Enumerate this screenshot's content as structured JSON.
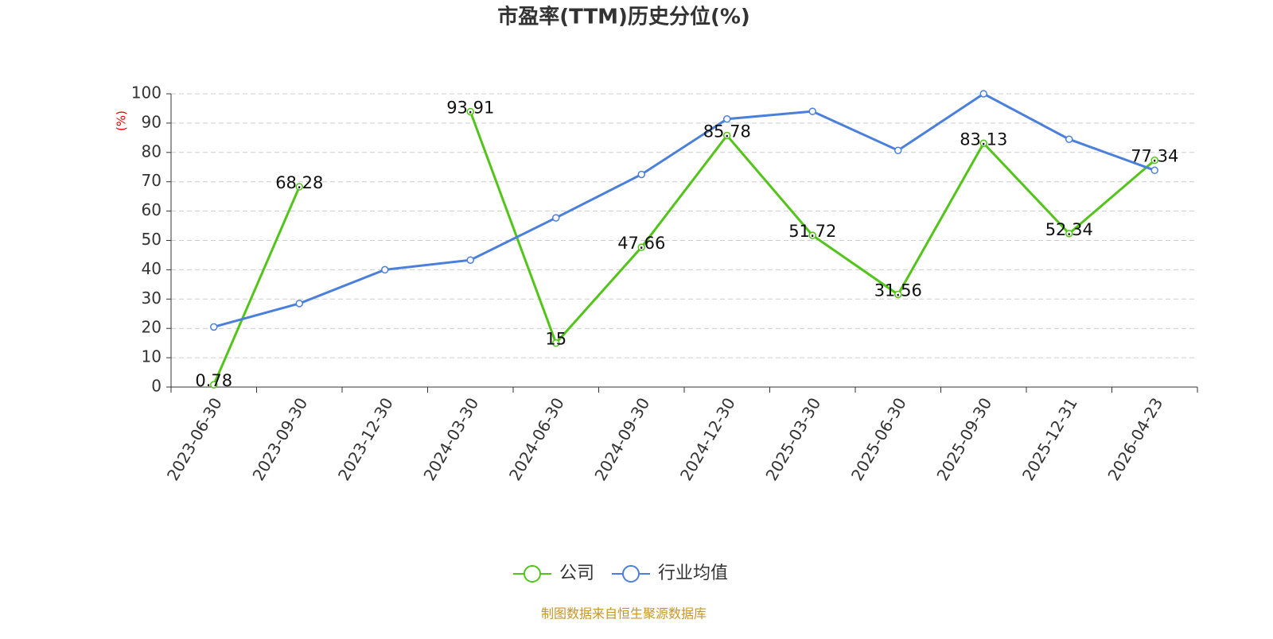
{
  "chart_data": {
    "type": "line",
    "title": "市盈率(TTM)历史分位(%)",
    "y_label": "(%)",
    "categories": [
      "2023-06-30",
      "2023-09-30",
      "2023-12-30",
      "2024-03-30",
      "2024-06-30",
      "2024-09-30",
      "2024-12-30",
      "2025-03-30",
      "2025-06-30",
      "2025-09-30",
      "2025-12-31",
      "2026-04-23"
    ],
    "series": [
      {
        "name": "公司",
        "color": "#52c41a",
        "values": [
          0.78,
          68.28,
          null,
          93.91,
          15,
          47.66,
          85.78,
          51.72,
          31.56,
          83.13,
          52.34,
          77.34
        ],
        "data_labels": true
      },
      {
        "name": "行业均值",
        "color": "#4a7fdc",
        "values": [
          20.5,
          28.5,
          40,
          43.3,
          57.7,
          72.5,
          91.4,
          94,
          80.7,
          100,
          84.5,
          73.9
        ],
        "data_labels": false
      }
    ],
    "ylim": [
      0,
      100
    ],
    "yticks": [
      0,
      10,
      20,
      30,
      40,
      50,
      60,
      70,
      80,
      90,
      100
    ],
    "grid": true,
    "legend": "bottom",
    "source": "制图数据来自恒生聚源数据库"
  }
}
